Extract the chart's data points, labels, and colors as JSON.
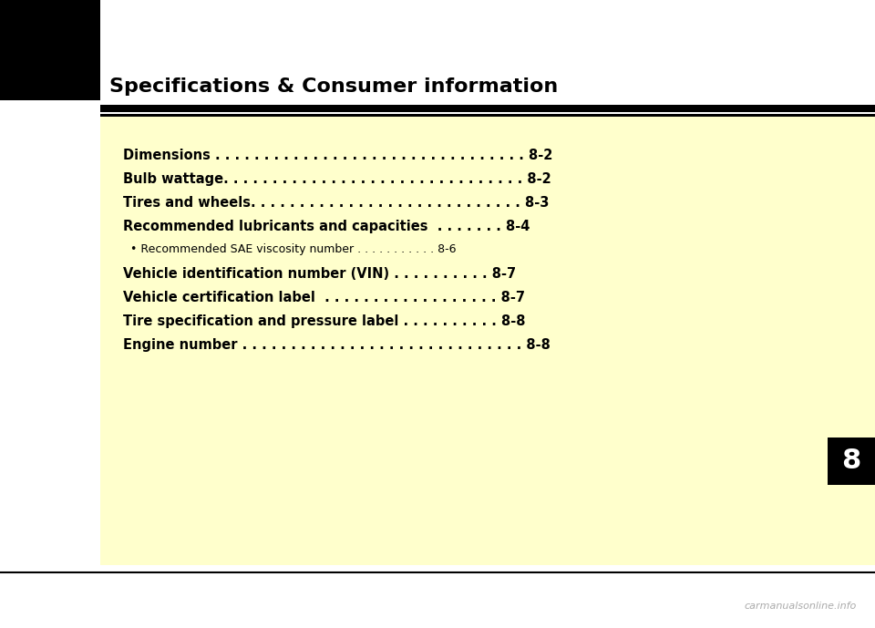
{
  "title": "Specifications & Consumer information",
  "bg_color": "#ffffff",
  "content_bg_color": "#ffffcc",
  "title_fontsize": 16,
  "chapter_number": "8",
  "chapter_text_color": "#ffffff",
  "toc_entries": [
    {
      "text": "Dimensions . . . . . . . . . . . . . . . . . . . . . . . . . . . . . . . . 8-2",
      "bold": true,
      "size": 10.5
    },
    {
      "text": "Bulb wattage. . . . . . . . . . . . . . . . . . . . . . . . . . . . . . . 8-2",
      "bold": true,
      "size": 10.5
    },
    {
      "text": "Tires and wheels. . . . . . . . . . . . . . . . . . . . . . . . . . . . 8-3",
      "bold": true,
      "size": 10.5
    },
    {
      "text": "Recommended lubricants and capacities  . . . . . . . 8-4",
      "bold": true,
      "size": 10.5
    },
    {
      "text": "  • Recommended SAE viscosity number . . . . . . . . . . . 8-6",
      "bold": false,
      "size": 9.0
    },
    {
      "text": "Vehicle identification number (VIN) . . . . . . . . . . 8-7",
      "bold": true,
      "size": 10.5
    },
    {
      "text": "Vehicle certification label  . . . . . . . . . . . . . . . . . . 8-7",
      "bold": true,
      "size": 10.5
    },
    {
      "text": "Tire specification and pressure label . . . . . . . . . . 8-8",
      "bold": true,
      "size": 10.5
    },
    {
      "text": "Engine number . . . . . . . . . . . . . . . . . . . . . . . . . . . . . 8-8",
      "bold": true,
      "size": 10.5
    }
  ],
  "footer_text": "carmanualsonline.info",
  "text_color": "#000000"
}
